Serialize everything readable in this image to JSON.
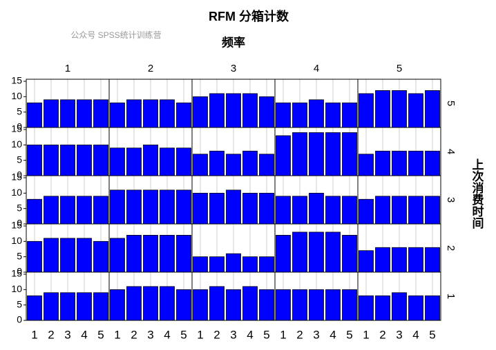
{
  "chart_data": {
    "type": "bar-grid",
    "title": "RFM 分箱计数",
    "watermark": "公众号 SPSS统计训练营",
    "x_title": "频率",
    "y_title": "上次消费时间",
    "columns": [
      "1",
      "2",
      "3",
      "4",
      "5"
    ],
    "rows": [
      "5",
      "4",
      "3",
      "2",
      "1"
    ],
    "categories": [
      "1",
      "2",
      "3",
      "4",
      "5"
    ],
    "ylim": [
      0,
      15
    ],
    "yticks": [
      0,
      5,
      10,
      15
    ],
    "color": "#0000ff",
    "panels": [
      [
        [
          8,
          9,
          9,
          9,
          9
        ],
        [
          8,
          9,
          9,
          9,
          8
        ],
        [
          10,
          11,
          11,
          11,
          10
        ],
        [
          8,
          8,
          9,
          8,
          8
        ],
        [
          11,
          12,
          12,
          11,
          12
        ]
      ],
      [
        [
          10,
          10,
          10,
          10,
          10
        ],
        [
          9,
          9,
          10,
          9,
          9
        ],
        [
          7,
          8,
          7,
          8,
          7
        ],
        [
          13,
          14,
          14,
          14,
          14
        ],
        [
          7,
          8,
          8,
          8,
          8
        ]
      ],
      [
        [
          8,
          9,
          9,
          9,
          9
        ],
        [
          11,
          11,
          11,
          11,
          11
        ],
        [
          10,
          10,
          11,
          10,
          10
        ],
        [
          9,
          9,
          10,
          9,
          9
        ],
        [
          8,
          9,
          9,
          9,
          9
        ]
      ],
      [
        [
          10,
          11,
          11,
          11,
          10
        ],
        [
          11,
          12,
          12,
          12,
          12
        ],
        [
          5,
          5,
          6,
          5,
          5
        ],
        [
          12,
          13,
          13,
          13,
          12
        ],
        [
          7,
          8,
          8,
          8,
          8
        ]
      ],
      [
        [
          8,
          9,
          9,
          9,
          9
        ],
        [
          10,
          11,
          11,
          11,
          10
        ],
        [
          10,
          11,
          10,
          11,
          10
        ],
        [
          10,
          10,
          10,
          10,
          10
        ],
        [
          8,
          8,
          9,
          8,
          8
        ]
      ]
    ]
  }
}
